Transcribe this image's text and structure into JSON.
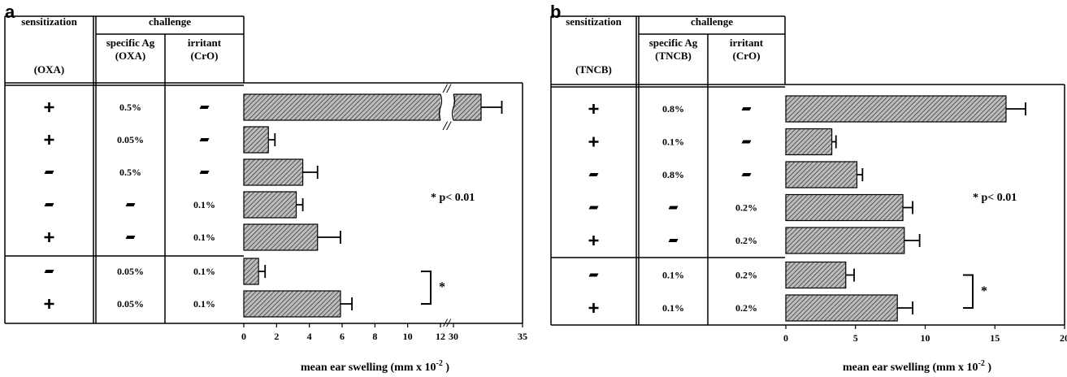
{
  "chart_data": [
    {
      "type": "bar",
      "panel_label": "a",
      "orientation": "horizontal",
      "table": {
        "sensitization_header": "sensitization",
        "sensitization_sub": "(OXA)",
        "challenge_header": "challenge",
        "specific_header": "specific Ag",
        "specific_sub": "(OXA)",
        "irritant_header": "irritant",
        "irritant_sub": "(CrO)"
      },
      "rows": [
        {
          "sensitization": "+",
          "specific": "0.5%",
          "irritant": "—"
        },
        {
          "sensitization": "+",
          "specific": "0.05%",
          "irritant": "—"
        },
        {
          "sensitization": "—",
          "specific": "0.5%",
          "irritant": "—"
        },
        {
          "sensitization": "—",
          "specific": "—",
          "irritant": "0.1%"
        },
        {
          "sensitization": "+",
          "specific": "—",
          "irritant": "0.1%"
        },
        {
          "sensitization": "—",
          "specific": "0.05%",
          "irritant": "0.1%"
        },
        {
          "sensitization": "+",
          "specific": "0.05%",
          "irritant": "0.1%"
        }
      ],
      "values": [
        32,
        1.5,
        3.6,
        3.2,
        4.5,
        0.9,
        5.9
      ],
      "errors": [
        1.5,
        0.4,
        0.9,
        0.4,
        1.4,
        0.4,
        0.7
      ],
      "axis_break": {
        "from": 12,
        "to": 30
      },
      "xticks": [
        "0",
        "2",
        "4",
        "6",
        "8",
        "10",
        "12",
        "30",
        "35"
      ],
      "xlabel": "mean ear swelling  (mm x 10",
      "xlabel_sup": "-2",
      "xlabel_end": ")",
      "annotation": "* p< 0.01",
      "sig_marker": "*"
    },
    {
      "type": "bar",
      "panel_label": "b",
      "orientation": "horizontal",
      "table": {
        "sensitization_header": "sensitization",
        "sensitization_sub": "(TNCB)",
        "challenge_header": "challenge",
        "specific_header": "specific Ag",
        "specific_sub": "(TNCB)",
        "irritant_header": "irritant",
        "irritant_sub": "(CrO)"
      },
      "rows": [
        {
          "sensitization": "+",
          "specific": "0.8%",
          "irritant": "—"
        },
        {
          "sensitization": "+",
          "specific": "0.1%",
          "irritant": "—"
        },
        {
          "sensitization": "—",
          "specific": "0.8%",
          "irritant": "—"
        },
        {
          "sensitization": "—",
          "specific": "—",
          "irritant": "0.2%"
        },
        {
          "sensitization": "+",
          "specific": "—",
          "irritant": "0.2%"
        },
        {
          "sensitization": "—",
          "specific": "0.1%",
          "irritant": "0.2%"
        },
        {
          "sensitization": "+",
          "specific": "0.1%",
          "irritant": "0.2%"
        }
      ],
      "values": [
        15.8,
        3.3,
        5.1,
        8.4,
        8.5,
        4.3,
        8.0
      ],
      "errors": [
        1.4,
        0.3,
        0.4,
        0.7,
        1.1,
        0.6,
        1.1
      ],
      "xlim": [
        0,
        20
      ],
      "xticks": [
        "0",
        "5",
        "10",
        "15",
        "20"
      ],
      "xlabel": "mean ear swelling  (mm x 10",
      "xlabel_sup": "-2",
      "xlabel_end": ")",
      "annotation": "* p< 0.01",
      "sig_marker": "*"
    }
  ]
}
